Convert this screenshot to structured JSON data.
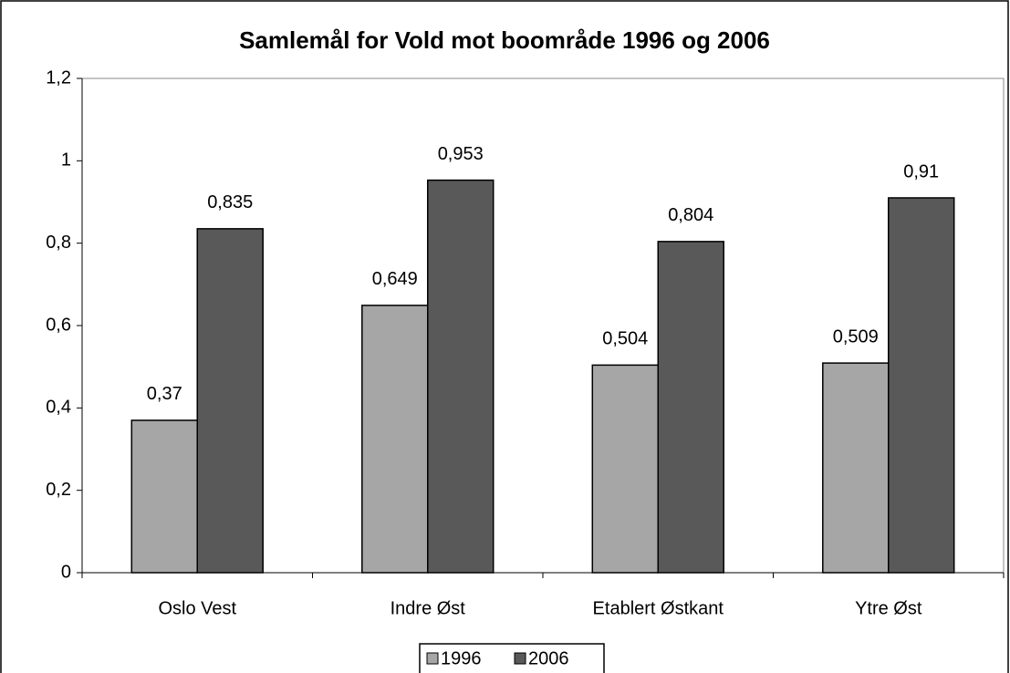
{
  "chart_data": {
    "type": "bar",
    "title": "Samlemål for Vold mot boområde 1996 og 2006",
    "categories": [
      "Oslo Vest",
      "Indre Øst",
      "Etablert Østkant",
      "Ytre Øst"
    ],
    "series": [
      {
        "name": "1996",
        "color": "#a6a6a6",
        "values": [
          0.37,
          0.649,
          0.504,
          0.509
        ],
        "value_labels": [
          "0,37",
          "0,649",
          "0,504",
          "0,509"
        ]
      },
      {
        "name": "2006",
        "color": "#595959",
        "values": [
          0.835,
          0.953,
          0.804,
          0.91
        ],
        "value_labels": [
          "0,835",
          "0,953",
          "0,804",
          "0,91"
        ]
      }
    ],
    "ylim": [
      0,
      1.2
    ],
    "yticks": [
      0,
      {
        "value": 0.2,
        "label": "0,2"
      },
      {
        "value": 0.4,
        "label": "0,4"
      },
      {
        "value": 0.6,
        "label": "0,6"
      },
      {
        "value": 0.8,
        "label": "0,8"
      },
      1,
      {
        "value": 1.2,
        "label": "1,2"
      }
    ],
    "legend": "bottom"
  }
}
